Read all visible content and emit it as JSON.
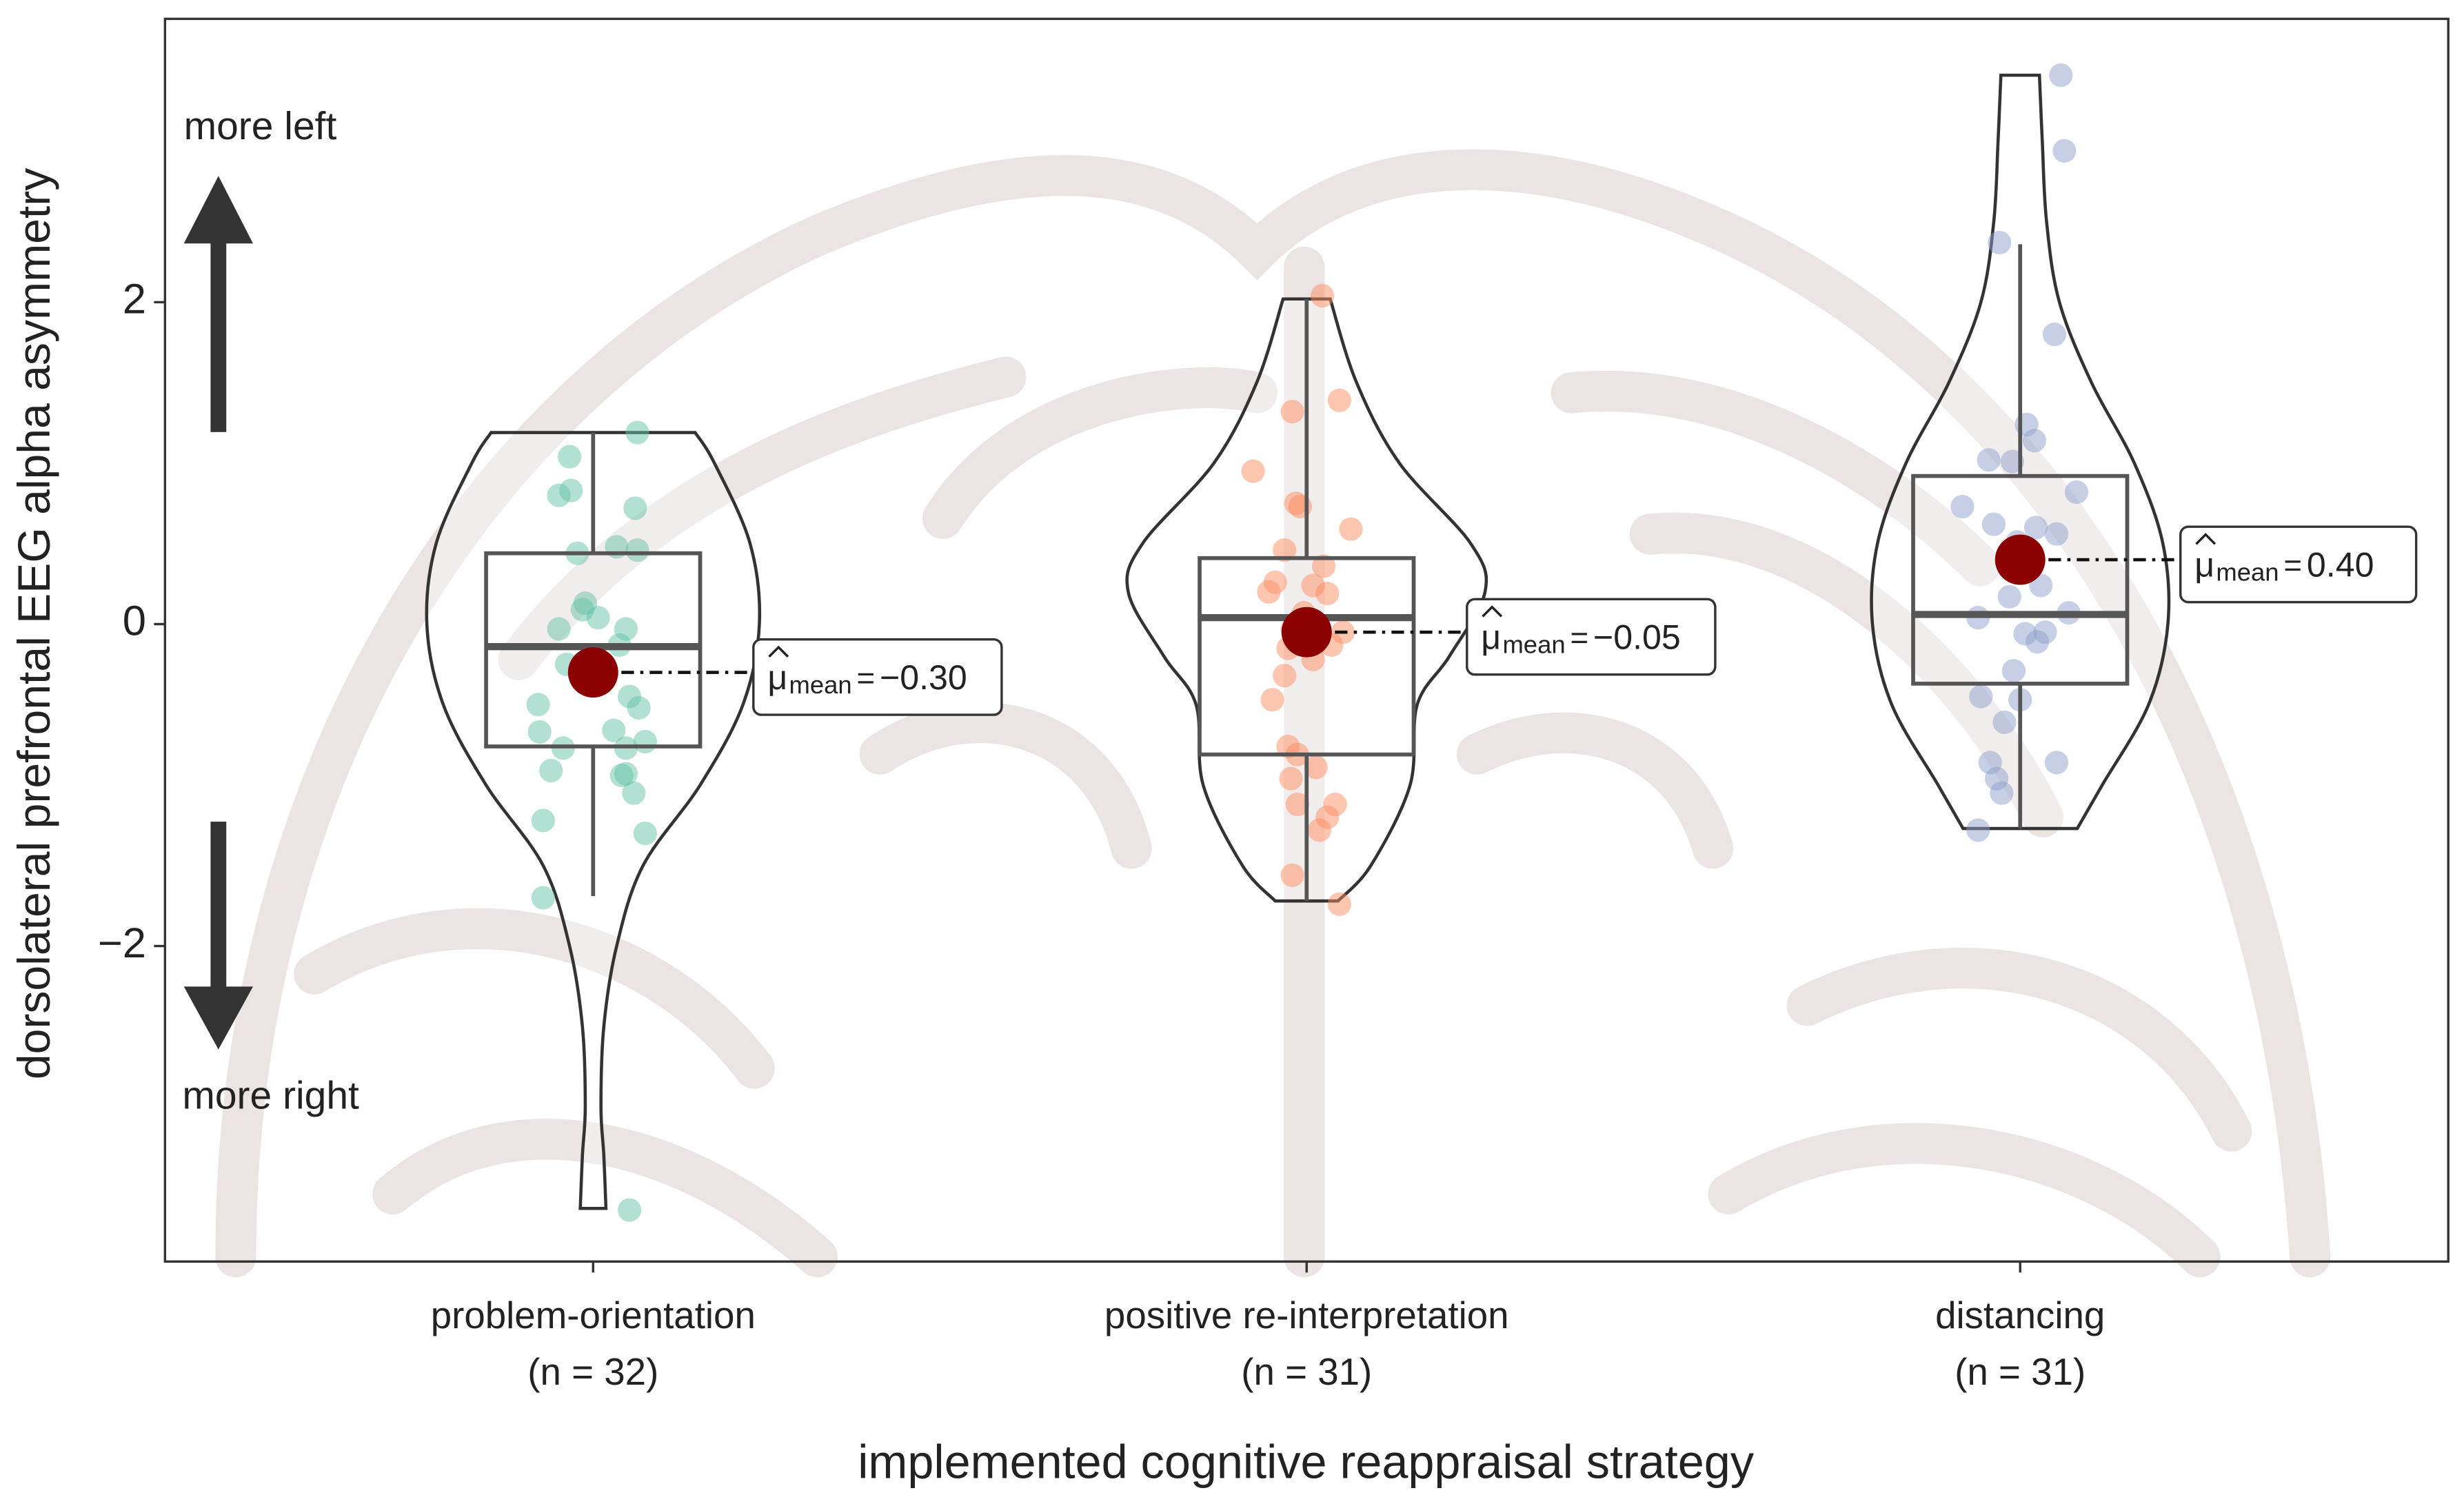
{
  "chart_data": {
    "type": "violin",
    "y_label": "dorsolateral prefrontal EEG alpha asymmetry",
    "x_label": "implemented cognitive reappraisal strategy",
    "annotations": {
      "top": "more left",
      "bottom": "more right"
    },
    "categories": [
      "problem-orientation",
      "positive re-interpretation",
      "distancing"
    ],
    "category_notes": [
      "(n = 32)",
      "(n = 31)",
      "(n = 31)"
    ],
    "ylim": [
      -3.96,
      3.76
    ],
    "yticks": [
      {
        "value": -2,
        "label": "−2"
      },
      0,
      2
    ],
    "mean_color": "#8b0000",
    "mean_symbol": "μ",
    "mean_subscript": "mean",
    "mean_equals": "=",
    "groups": [
      {
        "color": "#66c2a5",
        "violin": [
          [
            1.19,
            0.143
          ],
          [
            1.0,
            0.17
          ],
          [
            0.5,
            0.22
          ],
          [
            0,
            0.233
          ],
          [
            -0.5,
            0.21
          ],
          [
            -1,
            0.15
          ],
          [
            -1.5,
            0.07
          ],
          [
            -2,
            0.033
          ],
          [
            -2.5,
            0.015
          ],
          [
            -3,
            0.011
          ],
          [
            -3.3,
            0.015
          ],
          [
            -3.63,
            0.018
          ]
        ],
        "box": {
          "min": -1.69,
          "q1": -0.76,
          "median": -0.14,
          "q3": 0.44,
          "max": 1.19
        },
        "mean": -0.3,
        "mean_label": "−0.30",
        "points_x": [
          0.967,
          1.062,
          0.952,
          0.969,
          1.059,
          0.978,
          1.033,
          1.062,
          0.985,
          1.007,
          0.952,
          1.046,
          1.037,
          1.051,
          0.923,
          1.064,
          0.925,
          0.958,
          1.046,
          1.073,
          1.04,
          0.941,
          1.057,
          1.046,
          0.93,
          1.073,
          0.93,
          1.051,
          1.007,
          0.989,
          1.029,
          0.963
        ],
        "points": [
          1.04,
          1.19,
          0.8,
          0.83,
          0.72,
          0.44,
          0.48,
          0.46,
          0.09,
          0.04,
          -0.03,
          -0.03,
          -0.13,
          -0.45,
          -0.5,
          -0.52,
          -0.67,
          -0.77,
          -0.77,
          -0.73,
          -0.94,
          -0.91,
          -1.05,
          -0.93,
          -1.22,
          -1.3,
          -1.7,
          -3.64,
          -0.32,
          0.13,
          -0.66,
          -0.25
        ]
      },
      {
        "color": "#fc8d62",
        "violin": [
          [
            2.02,
            0.033
          ],
          [
            1.5,
            0.07
          ],
          [
            1.0,
            0.13
          ],
          [
            0.5,
            0.23
          ],
          [
            0.2,
            0.25
          ],
          [
            -0.2,
            0.2
          ],
          [
            -0.5,
            0.155
          ],
          [
            -1,
            0.145
          ],
          [
            -1.5,
            0.09
          ],
          [
            -1.72,
            0.044
          ]
        ],
        "box": {
          "min": -1.72,
          "q1": -0.81,
          "median": 0.04,
          "q3": 0.41,
          "max": 2.02
        },
        "mean": -0.05,
        "mean_label": "−0.05",
        "points_x": [
          2.022,
          2.046,
          1.98,
          1.925,
          1.985,
          1.991,
          2.062,
          1.969,
          2.024,
          1.956,
          2.009,
          2.029,
          1.947,
          1.98,
          2.051,
          1.974,
          2.009,
          1.952,
          1.974,
          1.987,
          2.013,
          1.978,
          1.987,
          2.04,
          2.029,
          2.018,
          1.98,
          2.046,
          1.996,
          2.035,
          1.969
        ],
        "points": [
          2.04,
          1.39,
          1.32,
          0.95,
          0.75,
          0.73,
          0.59,
          0.46,
          0.36,
          0.26,
          0.24,
          0.19,
          0.2,
          -0.03,
          -0.05,
          -0.15,
          -0.22,
          -0.47,
          -0.76,
          -0.81,
          -0.89,
          -0.96,
          -1.12,
          -1.12,
          -1.2,
          -1.28,
          -1.56,
          -1.74,
          0.07,
          -0.13,
          -0.32
        ]
      },
      {
        "color": "#8da0cb",
        "violin": [
          [
            3.41,
            0.027
          ],
          [
            3.0,
            0.031
          ],
          [
            2.5,
            0.037
          ],
          [
            2.0,
            0.055
          ],
          [
            1.5,
            0.1
          ],
          [
            1.0,
            0.16
          ],
          [
            0.5,
            0.2
          ],
          [
            0,
            0.207
          ],
          [
            -0.5,
            0.18
          ],
          [
            -1.0,
            0.115
          ],
          [
            -1.27,
            0.08
          ]
        ],
        "box": {
          "min": -1.27,
          "q1": -0.37,
          "median": 0.06,
          "q3": 0.92,
          "max": 2.36
        },
        "mean": 0.4,
        "mean_label": "0.40",
        "points_x": [
          3.057,
          3.062,
          2.971,
          3.048,
          3.009,
          3.02,
          2.956,
          2.989,
          3.079,
          2.919,
          2.963,
          3.022,
          3.051,
          2.996,
          2.985,
          3.029,
          2.941,
          3.068,
          3.007,
          3.035,
          3.024,
          2.991,
          2.945,
          3.0,
          2.978,
          2.958,
          3.051,
          2.967,
          2.974,
          2.941,
          2.985
        ],
        "points": [
          3.41,
          2.94,
          2.37,
          1.8,
          1.24,
          1.14,
          1.02,
          1.01,
          0.82,
          0.73,
          0.62,
          0.6,
          0.56,
          0.51,
          0.36,
          0.24,
          0.04,
          0.07,
          -0.06,
          -0.05,
          -0.11,
          -0.29,
          -0.45,
          -0.47,
          -0.61,
          -0.86,
          -0.86,
          -0.96,
          -1.05,
          -1.28,
          0.17
        ]
      }
    ]
  }
}
